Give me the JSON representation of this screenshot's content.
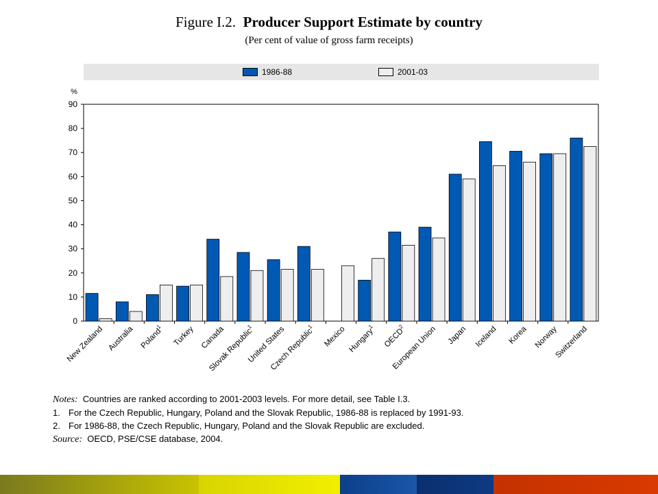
{
  "figure": {
    "label": "Figure I.2.",
    "title": "Producer Support Estimate by country",
    "subtitle": "(Per cent of value of gross farm receipts)"
  },
  "chart_data": {
    "type": "bar",
    "title": "Producer Support Estimate by country",
    "ylabel": "%",
    "ylim": [
      0,
      90
    ],
    "yticks": [
      0,
      10,
      20,
      30,
      40,
      50,
      60,
      70,
      80,
      90
    ],
    "grid": false,
    "legend_position": "top",
    "categories": [
      {
        "name": "New Zealand",
        "sup": ""
      },
      {
        "name": "Australia",
        "sup": ""
      },
      {
        "name": "Poland",
        "sup": "1"
      },
      {
        "name": "Turkey",
        "sup": ""
      },
      {
        "name": "Canada",
        "sup": ""
      },
      {
        "name": "Slovak Republic",
        "sup": "1"
      },
      {
        "name": "United States",
        "sup": ""
      },
      {
        "name": "Czech Republic",
        "sup": "1"
      },
      {
        "name": "Mexico",
        "sup": ""
      },
      {
        "name": "Hungary",
        "sup": "1"
      },
      {
        "name": "OECD",
        "sup": "2"
      },
      {
        "name": "European Union",
        "sup": ""
      },
      {
        "name": "Japan",
        "sup": ""
      },
      {
        "name": "Iceland",
        "sup": ""
      },
      {
        "name": "Korea",
        "sup": ""
      },
      {
        "name": "Norway",
        "sup": ""
      },
      {
        "name": "Switzerland",
        "sup": ""
      }
    ],
    "series": [
      {
        "name": "1986-88",
        "color": "#0059b3",
        "values": [
          11.5,
          8,
          11,
          14.5,
          34,
          28.5,
          25.5,
          31,
          null,
          17,
          37,
          39,
          61,
          74.5,
          70.5,
          69.5,
          76
        ]
      },
      {
        "name": "2001-03",
        "color": "#eeeeee",
        "values": [
          1,
          4,
          15,
          15,
          18.5,
          21,
          21.5,
          21.5,
          23,
          26,
          31.5,
          34.5,
          59,
          64.5,
          66,
          69.5,
          72.5
        ]
      }
    ]
  },
  "notes": {
    "label": "Notes:",
    "text": "Countries are ranked according to 2001-2003 levels. For more detail, see Table I.3.",
    "items": [
      {
        "num": "1.",
        "text": "For the Czech Republic, Hungary, Poland and the Slovak Republic, 1986-88 is replaced by 1991-93."
      },
      {
        "num": "2.",
        "text": "For 1986-88, the Czech Republic, Hungary, Poland and the Slovak Republic are excluded."
      }
    ],
    "source_label": "Source:",
    "source_text": "OECD, PSE/CSE database, 2004."
  },
  "footer_colors": [
    "#8a8a1a",
    "#f2ef00",
    "#1a56a8",
    "#0b2f6e",
    "#d93a00"
  ]
}
